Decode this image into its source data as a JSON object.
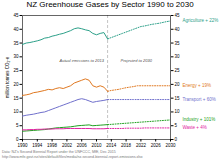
{
  "chart_data": {
    "type": "line",
    "title": "NZ Greenhouse Gases by Sector 1990 to 2030",
    "y_label": "million tonnes CO₂-e",
    "xlim": [
      1990,
      2030
    ],
    "ylim": [
      0,
      45
    ],
    "xticks": [
      1990,
      1994,
      1998,
      2002,
      2006,
      2010,
      2014,
      2018,
      2022,
      2026,
      2030
    ],
    "yticks": [
      0,
      5,
      10,
      15,
      20,
      25,
      30,
      35,
      40,
      45
    ],
    "grid": false,
    "legend": false,
    "series": [
      {
        "name": "Agriculture + 22%",
        "color": "#2ca089",
        "line_style": "solid",
        "x": [
          1990,
          1991,
          1992,
          1993,
          1994,
          1995,
          1996,
          1997,
          1998,
          1999,
          2000,
          2001,
          2002,
          2003,
          2004,
          2005,
          2006,
          2007,
          2008,
          2009,
          2010,
          2011,
          2012,
          2013
        ],
        "values": [
          34.5,
          35.0,
          35.2,
          35.5,
          35.8,
          36.2,
          36.8,
          37.0,
          37.5,
          37.8,
          38.2,
          38.5,
          39.0,
          39.5,
          40.2,
          40.5,
          40.2,
          39.8,
          39.5,
          38.5,
          38.0,
          38.5,
          38.8,
          36.5
        ]
      },
      {
        "name": "Agriculture + 22%",
        "color": "#2ca089",
        "line_style": "dotted",
        "x": [
          2013,
          2014,
          2015,
          2016,
          2017,
          2018,
          2019,
          2020,
          2021,
          2022,
          2023,
          2024,
          2025,
          2026,
          2027,
          2028,
          2029,
          2030
        ],
        "values": [
          36.5,
          37.0,
          37.5,
          38.0,
          38.5,
          39.0,
          39.5,
          40.0,
          40.5,
          41.0,
          41.2,
          41.5,
          41.8,
          42.0,
          42.2,
          42.5,
          42.8,
          43.0
        ]
      },
      {
        "name": "Energy + 19%",
        "color": "#e07820",
        "line_style": "solid",
        "x": [
          1990,
          1991,
          1992,
          1993,
          1994,
          1995,
          1996,
          1997,
          1998,
          1999,
          2000,
          2001,
          2002,
          2003,
          2004,
          2005,
          2006,
          2007,
          2008,
          2009,
          2010,
          2011,
          2012,
          2013
        ],
        "values": [
          16.0,
          16.2,
          16.5,
          17.0,
          17.2,
          17.5,
          17.8,
          18.2,
          18.0,
          18.5,
          18.8,
          18.5,
          19.0,
          19.5,
          20.5,
          21.0,
          21.5,
          22.0,
          21.5,
          19.5,
          19.0,
          19.5,
          19.0,
          17.5
        ]
      },
      {
        "name": "Energy + 19%",
        "color": "#e07820",
        "line_style": "dotted",
        "x": [
          2013,
          2014,
          2015,
          2016,
          2017,
          2018,
          2019,
          2020,
          2021,
          2022,
          2023,
          2024,
          2025,
          2026,
          2027,
          2028,
          2029,
          2030
        ],
        "values": [
          17.5,
          17.8,
          18.0,
          18.2,
          18.5,
          18.8,
          19.0,
          19.2,
          19.5,
          19.5,
          19.5,
          19.5,
          19.5,
          19.5,
          19.5,
          19.5,
          19.5,
          19.5
        ]
      },
      {
        "name": "Transport + 60%",
        "color": "#7070cc",
        "line_style": "solid",
        "x": [
          1990,
          1991,
          1992,
          1993,
          1994,
          1995,
          1996,
          1997,
          1998,
          1999,
          2000,
          2001,
          2002,
          2003,
          2004,
          2005,
          2006,
          2007,
          2008,
          2009,
          2010,
          2011,
          2012,
          2013
        ],
        "values": [
          8.5,
          8.8,
          9.0,
          9.2,
          9.5,
          9.8,
          10.0,
          10.5,
          11.0,
          11.5,
          12.0,
          12.5,
          13.0,
          13.5,
          14.0,
          14.5,
          14.8,
          14.5,
          14.0,
          13.5,
          13.8,
          14.0,
          14.2,
          14.5
        ]
      },
      {
        "name": "Transport + 60%",
        "color": "#7070cc",
        "line_style": "dotted",
        "x": [
          2013,
          2014,
          2015,
          2016,
          2017,
          2018,
          2019,
          2020,
          2021,
          2022,
          2023,
          2024,
          2025,
          2026,
          2027,
          2028,
          2029,
          2030
        ],
        "values": [
          14.5,
          14.5,
          14.5,
          14.5,
          14.5,
          14.5,
          14.5,
          14.5,
          14.5,
          14.5,
          14.5,
          14.5,
          14.5,
          14.5,
          14.5,
          14.5,
          14.5,
          14.5
        ]
      },
      {
        "name": "Industry + 101%",
        "color": "#20a020",
        "line_style": "solid",
        "x": [
          1990,
          1991,
          1992,
          1993,
          1994,
          1995,
          1996,
          1997,
          1998,
          1999,
          2000,
          2001,
          2002,
          2003,
          2004,
          2005,
          2006,
          2007,
          2008,
          2009,
          2010,
          2011,
          2012,
          2013
        ],
        "values": [
          3.0,
          3.1,
          3.2,
          3.3,
          3.4,
          3.5,
          3.6,
          3.8,
          4.0,
          4.2,
          4.3,
          4.4,
          4.5,
          4.6,
          4.8,
          5.0,
          5.1,
          5.2,
          5.3,
          5.0,
          5.1,
          5.2,
          5.3,
          5.4
        ]
      },
      {
        "name": "Industry + 101%",
        "color": "#20a020",
        "line_style": "dotted",
        "x": [
          2013,
          2014,
          2015,
          2016,
          2017,
          2018,
          2019,
          2020,
          2021,
          2022,
          2023,
          2024,
          2025,
          2026,
          2027,
          2028,
          2029,
          2030
        ],
        "values": [
          5.4,
          5.5,
          5.6,
          5.7,
          5.8,
          5.9,
          6.0,
          6.1,
          6.2,
          6.3,
          6.4,
          6.5,
          6.6,
          6.7,
          6.8,
          6.9,
          7.0,
          7.1
        ]
      },
      {
        "name": "Waste + 4%",
        "color": "#e020a0",
        "line_style": "solid",
        "x": [
          1990,
          1991,
          1992,
          1993,
          1994,
          1995,
          1996,
          1997,
          1998,
          1999,
          2000,
          2001,
          2002,
          2003,
          2004,
          2005,
          2006,
          2007,
          2008,
          2009,
          2010,
          2011,
          2012,
          2013
        ],
        "values": [
          3.5,
          3.5,
          3.6,
          3.6,
          3.7,
          3.7,
          3.8,
          3.8,
          3.8,
          3.9,
          3.9,
          3.9,
          4.0,
          4.0,
          4.0,
          4.0,
          4.0,
          4.0,
          4.0,
          3.9,
          3.9,
          3.9,
          3.9,
          4.0
        ]
      },
      {
        "name": "Waste + 4%",
        "color": "#e020a0",
        "line_style": "dotted",
        "x": [
          2013,
          2014,
          2015,
          2016,
          2017,
          2018,
          2019,
          2020,
          2021,
          2022,
          2023,
          2024,
          2025,
          2026,
          2027,
          2028,
          2029,
          2030
        ],
        "values": [
          4.0,
          4.0,
          4.0,
          4.0,
          4.0,
          4.1,
          4.1,
          4.1,
          4.1,
          4.1,
          4.2,
          4.2,
          4.2,
          4.2,
          4.2,
          4.2,
          4.2,
          4.2
        ]
      }
    ],
    "annotations": [
      {
        "text": "Actual emissions to 2013",
        "x": 2000,
        "y": 28.5
      },
      {
        "text": "Projected to 2030",
        "x": 2016.5,
        "y": 28.5
      }
    ],
    "notes": [
      "Data: NZ's Second Biennial Report under the UNFCCC, MfE, Dec 2015",
      "http://www.mfe.govt.nz/sites/default/files/media/nz-second-biennial-report-emissions.xlsx"
    ]
  }
}
